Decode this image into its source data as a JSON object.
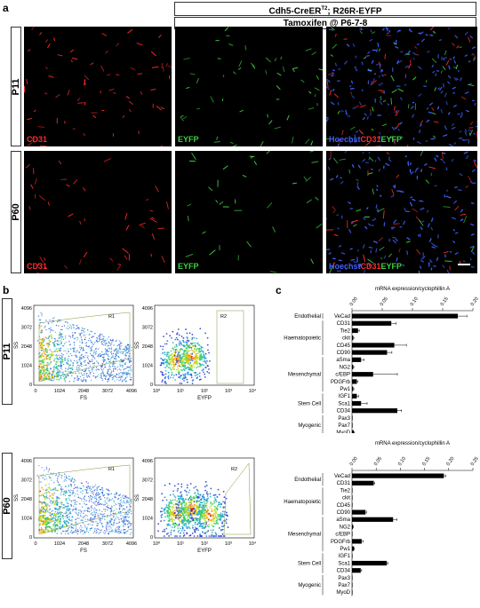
{
  "panels": {
    "a": "a",
    "b": "b",
    "c": "c"
  },
  "panel_a": {
    "title1": "Cdh5-CreERT2; R26R-EYFP",
    "title1_main": "Cdh5-CreER",
    "title1_sup": "T2",
    "title1_rest": "; R26R-EYFP",
    "title2": "Tamoxifen @ P6-7-8",
    "rows": [
      "P11",
      "P60"
    ],
    "labels": {
      "cd31": "CD31",
      "eyfp": "EYFP",
      "hoechst": "Hoechst",
      "cd31m": "CD31",
      "eyfpm": "EYFP"
    },
    "colors": {
      "red": "#ff2a2a",
      "green": "#3fd13f",
      "blue": "#4060ff"
    }
  },
  "panel_b": {
    "rows": [
      "P11",
      "P60"
    ],
    "fs_plot": {
      "xlabel": "FS",
      "ylabel": "SS",
      "gate": "R1",
      "xticks": [
        "0",
        "1024",
        "2048",
        "3072",
        "4096"
      ],
      "yticks": [
        "4096",
        "3072",
        "2048",
        "1024",
        "0"
      ]
    },
    "eyfp_plot": {
      "xlabel": "EYFP",
      "ylabel": "SS",
      "gate": "R2",
      "xticks": [
        "10⁰",
        "10¹",
        "10²",
        "10³",
        "10⁴"
      ],
      "yticks": [
        "4096",
        "3072",
        "2048",
        "1024",
        "0"
      ]
    }
  },
  "chart_data": [
    {
      "type": "bar",
      "title": "mRNA expression/cyclophillin A",
      "orientation": "horizontal",
      "row": "P11",
      "xlim": [
        0,
        0.2
      ],
      "xticks": [
        "0.00",
        "0.05",
        "0.10",
        "0.15",
        "0.20"
      ],
      "categories": [
        "VeCad",
        "CD31",
        "Tie2",
        "ckit",
        "CD45",
        "CD90",
        "aSma",
        "NG2",
        "c/EBP",
        "PDGFrb",
        "Pw1",
        "IGF1",
        "Sca1",
        "CD34",
        "Pax3",
        "Pax7",
        "MyoD"
      ],
      "values": [
        0.175,
        0.065,
        0.01,
        0.002,
        0.07,
        0.058,
        0.015,
        0.002,
        0.035,
        0.008,
        0.002,
        0.008,
        0.015,
        0.075,
        0.001,
        0.001,
        0.003
      ],
      "errors": [
        0.015,
        0.008,
        0.002,
        0.001,
        0.02,
        0.008,
        0.005,
        0.001,
        0.04,
        0.002,
        0.001,
        0.003,
        0.01,
        0.007,
        0,
        0,
        0.001
      ],
      "groups": [
        {
          "name": "Endothelial",
          "first": 0,
          "last": 0
        },
        {
          "name": "Haematopoietic",
          "first": 1,
          "last": 5
        },
        {
          "name": "Mesenchymal",
          "first": 6,
          "last": 10
        },
        {
          "name": "Stem Cell",
          "first": 11,
          "last": 13
        },
        {
          "name": "Myogenic",
          "first": 14,
          "last": 16
        }
      ]
    },
    {
      "type": "bar",
      "title": "mRNA expression/cyclophillin A",
      "orientation": "horizontal",
      "row": "P60",
      "xlim": [
        0,
        0.25
      ],
      "xticks": [
        "0.00",
        "0.05",
        "0.10",
        "0.15",
        "0.20",
        "0.25"
      ],
      "categories": [
        "VeCad",
        "CD31",
        "Tie2",
        "ckit",
        "CD45",
        "CD90",
        "aSma",
        "NG2",
        "c/EBP",
        "PDGFrb",
        "Pw1",
        "IGF1",
        "Sca1",
        "CD34",
        "Pax3",
        "Pax7",
        "MyoD"
      ],
      "values": [
        0.19,
        0.045,
        0.001,
        0.001,
        0.001,
        0.028,
        0.085,
        0.002,
        0.001,
        0.02,
        0.004,
        0.001,
        0.072,
        0.018,
        0.001,
        0.001,
        0.001
      ],
      "errors": [
        0.004,
        0.002,
        0,
        0,
        0,
        0.002,
        0.008,
        0.001,
        0,
        0.003,
        0.001,
        0,
        0.002,
        0.002,
        0,
        0,
        0
      ],
      "groups": [
        {
          "name": "Endothelial",
          "first": 0,
          "last": 1
        },
        {
          "name": "Haematopoietic",
          "first": 2,
          "last": 5
        },
        {
          "name": "Mesenchymal",
          "first": 6,
          "last": 10
        },
        {
          "name": "Stem Cell",
          "first": 11,
          "last": 13
        },
        {
          "name": "Myogenic",
          "first": 14,
          "last": 16
        }
      ]
    }
  ]
}
